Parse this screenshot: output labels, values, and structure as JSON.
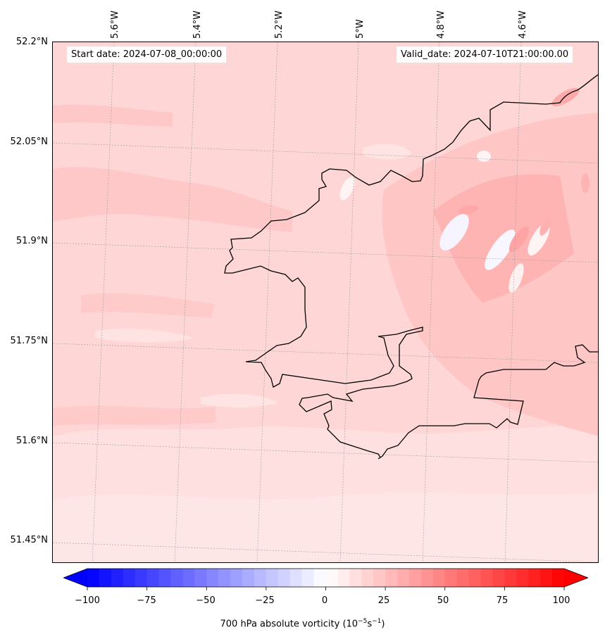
{
  "map": {
    "start_date": "Start date: 2024-07-08_00:00:00",
    "valid_date": "Valid_date: 2024-07-10T21:00:00.00",
    "lat_labels": [
      "52.2°N",
      "52.05°N",
      "51.9°N",
      "51.75°N",
      "51.6°N",
      "51.45°N"
    ],
    "lon_labels": [
      "5.6°W",
      "5.4°W",
      "5.2°W",
      "5°W",
      "4.8°W",
      "4.6°W"
    ],
    "field_colors": {
      "background": "#ffd6d6",
      "light": "#ffe4e4",
      "lighter": "#ffeeee",
      "medium": "#ffc4c4",
      "strong": "#ffa8a8",
      "white": "#f8f6ff",
      "coast": "#000000"
    }
  },
  "colorbar": {
    "ticks": [
      "−100",
      "−75",
      "−50",
      "−25",
      "0",
      "25",
      "50",
      "75",
      "100"
    ],
    "tick_values": [
      -100,
      -75,
      -50,
      -25,
      0,
      25,
      50,
      75,
      100
    ],
    "range": [
      -100,
      100
    ],
    "low_color": "#0000ff",
    "mid_color": "#ffffff",
    "high_color": "#ff0000",
    "label_main": "700 hPa absolute vorticity (10",
    "label_exp1": "−5",
    "label_mid": "s",
    "label_exp2": "−1",
    "label_end": ")"
  }
}
